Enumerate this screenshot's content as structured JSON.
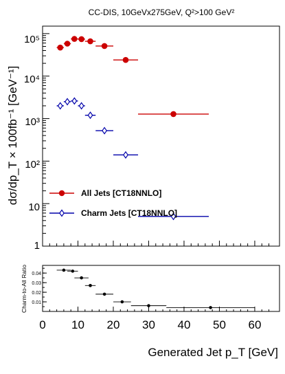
{
  "chart_data": [
    {
      "type": "scatter",
      "title": "CC-DIS, 10GeVx275GeV, Q²>100 GeV²",
      "ylabel": "dσ/dp_T × 100fb⁻¹ [GeV⁻¹]",
      "yscale": "log",
      "ylim": [
        1,
        150000
      ],
      "xlim": [
        0,
        67
      ],
      "y_tick_labels": [
        "1",
        "10",
        "10²",
        "10³",
        "10⁴",
        "10⁵"
      ],
      "legend_position": "lower-left",
      "series": [
        {
          "name": "All Jets [CT18NNLO]",
          "color": "#cc0000",
          "marker": "filled-circle",
          "points": [
            {
              "x": 5,
              "xlo": 4,
              "xhi": 6,
              "y": 47000
            },
            {
              "x": 7,
              "xlo": 6,
              "xhi": 8,
              "y": 58000
            },
            {
              "x": 9,
              "xlo": 8,
              "xhi": 10,
              "y": 75000
            },
            {
              "x": 11,
              "xlo": 10,
              "xhi": 12,
              "y": 74000
            },
            {
              "x": 13.5,
              "xlo": 12,
              "xhi": 15,
              "y": 66000
            },
            {
              "x": 17.5,
              "xlo": 15,
              "xhi": 20,
              "y": 51000
            },
            {
              "x": 23.5,
              "xlo": 20,
              "xhi": 27,
              "y": 24000
            },
            {
              "x": 37,
              "xlo": 27,
              "xhi": 47,
              "y": 1280
            }
          ]
        },
        {
          "name": "Charm Jets [CT18NNLO]",
          "color": "#0000aa",
          "marker": "open-diamond",
          "points": [
            {
              "x": 5,
              "xlo": 4,
              "xhi": 6,
              "y": 2000
            },
            {
              "x": 7,
              "xlo": 6,
              "xhi": 8,
              "y": 2500
            },
            {
              "x": 9,
              "xlo": 8,
              "xhi": 10,
              "y": 2600
            },
            {
              "x": 11,
              "xlo": 10,
              "xhi": 12,
              "y": 2000
            },
            {
              "x": 13.5,
              "xlo": 12,
              "xhi": 15,
              "y": 1200
            },
            {
              "x": 17.5,
              "xlo": 15,
              "xhi": 20,
              "y": 520
            },
            {
              "x": 23.5,
              "xlo": 20,
              "xhi": 27,
              "y": 140
            },
            {
              "x": 37,
              "xlo": 27,
              "xhi": 47,
              "y": 5
            }
          ]
        }
      ]
    },
    {
      "type": "scatter",
      "xlabel": "Generated Jet p_T [GeV]",
      "ylabel": "Charm-to-All Ratio",
      "xlim": [
        0,
        67
      ],
      "ylim": [
        0,
        0.048
      ],
      "x_ticks": [
        0,
        10,
        20,
        30,
        40,
        50,
        60
      ],
      "y_ticks": [
        0.01,
        0.02,
        0.03,
        0.04
      ],
      "series": [
        {
          "color": "#000000",
          "marker": "filled-circle",
          "points": [
            {
              "x": 6,
              "xlo": 4,
              "xhi": 8,
              "y": 0.043
            },
            {
              "x": 8.5,
              "xlo": 7,
              "xhi": 10,
              "y": 0.042
            },
            {
              "x": 11,
              "xlo": 9,
              "xhi": 13,
              "y": 0.035
            },
            {
              "x": 13.5,
              "xlo": 12,
              "xhi": 15,
              "y": 0.027
            },
            {
              "x": 17.5,
              "xlo": 15,
              "xhi": 20,
              "y": 0.018
            },
            {
              "x": 22.5,
              "xlo": 20,
              "xhi": 25,
              "y": 0.01
            },
            {
              "x": 30,
              "xlo": 25,
              "xhi": 35,
              "y": 0.006
            },
            {
              "x": 47.5,
              "xlo": 35,
              "xhi": 60,
              "y": 0.004
            }
          ]
        }
      ]
    }
  ]
}
